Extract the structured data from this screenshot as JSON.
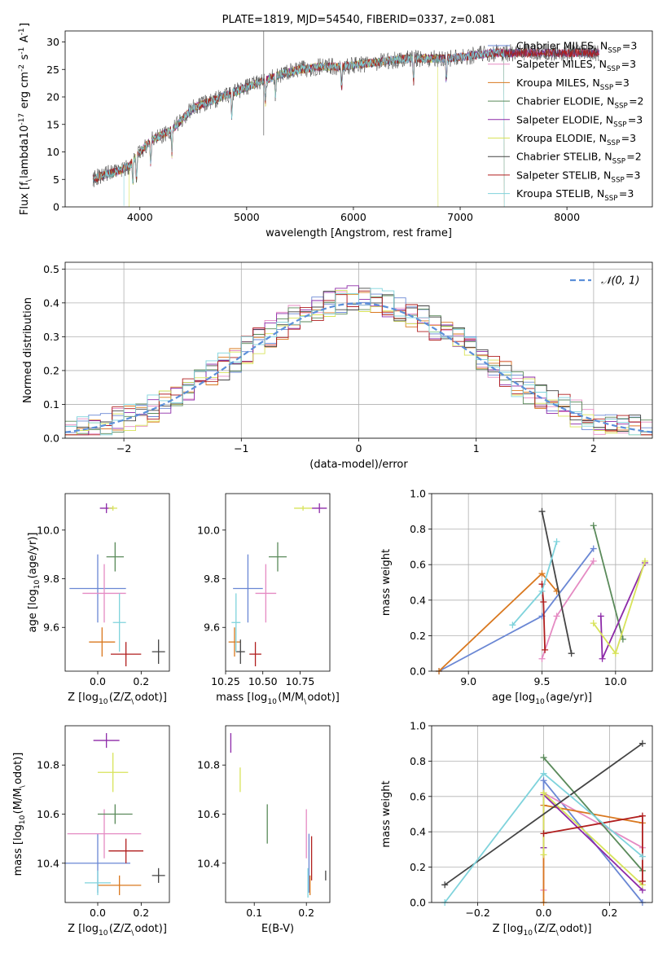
{
  "chart_data": [
    {
      "type": "line",
      "title": "PLATE=1819, MJD=54540, FIBERID=0337, z=0.081",
      "xlabel": "wavelength [Angstrom, rest frame]",
      "ylabel": "Flux [f$_\\lambda$10$^{-17}$ erg cm$^{-2}$ s$^{-1}$ A$^{-1}$]",
      "xlim": [
        3300,
        8800
      ],
      "ylim": [
        0,
        32
      ],
      "x_ticks": [
        4000,
        5000,
        6000,
        7000,
        8000
      ],
      "y_ticks": [
        0,
        5,
        10,
        15,
        20,
        25,
        30
      ],
      "legend_position": "right",
      "spectrum_profile": {
        "wavelength": [
          3550,
          3700,
          3800,
          3900,
          4000,
          4100,
          4200,
          4300,
          4400,
          4500,
          4700,
          4900,
          5100,
          5300,
          5500,
          5700,
          5900,
          6100,
          6300,
          6500,
          6700,
          6900,
          7100,
          7300,
          7500,
          7700,
          7900,
          8100,
          8300
        ],
        "flux": [
          5,
          6,
          6.5,
          7.5,
          10,
          12,
          13,
          14,
          16,
          18,
          19.5,
          21,
          22.5,
          24,
          25,
          25.5,
          25.5,
          26,
          26.5,
          27,
          27,
          27,
          27.5,
          28,
          28,
          28,
          28,
          28,
          28
        ]
      },
      "series": [
        {
          "name": "Chabrier MILES, N$_{SSP}$=3",
          "color": "#6a87d4"
        },
        {
          "name": "Salpeter MILES, N$_{SSP}$=3",
          "color": "#e58bc3"
        },
        {
          "name": "Kroupa MILES, N$_{SSP}$=3",
          "color": "#d9781f"
        },
        {
          "name": "Chabrier ELODIE, N$_{SSP}$=2",
          "color": "#5a8a5a"
        },
        {
          "name": "Salpeter ELODIE, N$_{SSP}$=3",
          "color": "#8d2aa8"
        },
        {
          "name": "Kroupa ELODIE, N$_{SSP}$=3",
          "color": "#d8e35a"
        },
        {
          "name": "Chabrier STELIB, N$_{SSP}$=2",
          "color": "#444444"
        },
        {
          "name": "Salpeter STELIB, N$_{SSP}$=3",
          "color": "#b01e1e"
        },
        {
          "name": "Kroupa STELIB, N$_{SSP}$=3",
          "color": "#7fd3dc"
        }
      ]
    },
    {
      "type": "line",
      "xlabel": "(data-model)/error",
      "ylabel": "Normed distribution",
      "xlim": [
        -2.5,
        2.5
      ],
      "ylim": [
        0,
        0.52
      ],
      "x_ticks": [
        -2,
        -1,
        0,
        1,
        2
      ],
      "y_ticks": [
        0.0,
        0.1,
        0.2,
        0.3,
        0.4,
        0.5
      ],
      "grid": true,
      "legend": "$\\mathcal{N}(0,1)$",
      "legend_position": "top-right",
      "normal_curve": {
        "mean": 0,
        "sigma": 1,
        "color": "#5b8fd9"
      },
      "histogram_bin_width": 0.1,
      "histogram_peak": 0.42
    },
    {
      "type": "scatter",
      "xlabel": "Z [log$_{10}$(Z/Z$_\\odot$)]",
      "ylabel": "age  [log$_{10}$(age/yr)]",
      "xlim": [
        -0.15,
        0.33
      ],
      "ylim": [
        9.42,
        10.15
      ],
      "x_ticks": [
        0.0,
        0.2
      ],
      "y_ticks": [
        9.6,
        9.8,
        10.0
      ],
      "points": [
        {
          "series": "Chabrier MILES",
          "x": 0.0,
          "y": 9.76,
          "xerr": 0.13,
          "yerr": 0.14
        },
        {
          "series": "Salpeter MILES",
          "x": 0.03,
          "y": 9.74,
          "xerr": 0.1,
          "yerr": 0.12
        },
        {
          "series": "Kroupa MILES",
          "x": 0.02,
          "y": 9.54,
          "xerr": 0.06,
          "yerr": 0.06
        },
        {
          "series": "Chabrier ELODIE",
          "x": 0.08,
          "y": 9.89,
          "xerr": 0.04,
          "yerr": 0.06
        },
        {
          "series": "Salpeter ELODIE",
          "x": 0.04,
          "y": 10.09,
          "xerr": 0.03,
          "yerr": 0.02
        },
        {
          "series": "Kroupa ELODIE",
          "x": 0.07,
          "y": 10.09,
          "xerr": 0.02,
          "yerr": 0.01
        },
        {
          "series": "Chabrier STELIB",
          "x": 0.28,
          "y": 9.5,
          "xerr": 0.03,
          "yerr": 0.05
        },
        {
          "series": "Salpeter STELIB",
          "x": 0.13,
          "y": 9.49,
          "xerr": 0.07,
          "yerr": 0.05
        },
        {
          "series": "Kroupa STELIB",
          "x": 0.1,
          "y": 9.62,
          "xerr": 0.03,
          "yerr": 0.12
        }
      ]
    },
    {
      "type": "scatter",
      "xlabel": "mass [log$_{10}$(M/M$_\\odot$)]",
      "xlim": [
        10.25,
        10.95
      ],
      "ylim": [
        9.42,
        10.15
      ],
      "x_ticks": [
        10.25,
        10.5,
        10.75
      ],
      "y_ticks": [
        9.6,
        9.8,
        10.0
      ],
      "points": [
        {
          "series": "Chabrier MILES",
          "x": 10.4,
          "y": 9.76,
          "xerr": 0.1,
          "yerr": 0.14
        },
        {
          "series": "Salpeter MILES",
          "x": 10.52,
          "y": 9.74,
          "xerr": 0.07,
          "yerr": 0.12
        },
        {
          "series": "Kroupa MILES",
          "x": 10.31,
          "y": 9.54,
          "xerr": 0.04,
          "yerr": 0.06
        },
        {
          "series": "Chabrier ELODIE",
          "x": 10.6,
          "y": 9.89,
          "xerr": 0.06,
          "yerr": 0.06
        },
        {
          "series": "Salpeter ELODIE",
          "x": 10.88,
          "y": 10.09,
          "xerr": 0.05,
          "yerr": 0.02
        },
        {
          "series": "Kroupa ELODIE",
          "x": 10.77,
          "y": 10.09,
          "xerr": 0.06,
          "yerr": 0.01
        },
        {
          "series": "Chabrier STELIB",
          "x": 10.35,
          "y": 9.5,
          "xerr": 0.03,
          "yerr": 0.05
        },
        {
          "series": "Salpeter STELIB",
          "x": 10.45,
          "y": 9.49,
          "xerr": 0.04,
          "yerr": 0.05
        },
        {
          "series": "Kroupa STELIB",
          "x": 10.32,
          "y": 9.62,
          "xerr": 0.03,
          "yerr": 0.12
        }
      ]
    },
    {
      "type": "line",
      "xlabel": "age  [log$_{10}$(age/yr)]",
      "ylabel": "mass weight",
      "xlim": [
        8.75,
        10.25
      ],
      "ylim": [
        0,
        1
      ],
      "x_ticks": [
        9.0,
        9.5,
        10.0
      ],
      "y_ticks": [
        0.0,
        0.2,
        0.4,
        0.6,
        0.8,
        1.0
      ],
      "grid": true,
      "series": [
        {
          "name": "Chabrier MILES",
          "x": [
            8.8,
            9.5,
            9.85
          ],
          "y": [
            0.0,
            0.31,
            0.69
          ]
        },
        {
          "name": "Salpeter MILES",
          "x": [
            9.5,
            9.6,
            9.85
          ],
          "y": [
            0.07,
            0.31,
            0.62
          ]
        },
        {
          "name": "Kroupa MILES",
          "x": [
            8.8,
            9.5,
            9.6
          ],
          "y": [
            0.0,
            0.55,
            0.45
          ]
        },
        {
          "name": "Chabrier ELODIE",
          "x": [
            9.85,
            10.05
          ],
          "y": [
            0.82,
            0.18
          ]
        },
        {
          "name": "Salpeter ELODIE",
          "x": [
            9.9,
            9.91,
            10.2
          ],
          "y": [
            0.31,
            0.07,
            0.61
          ]
        },
        {
          "name": "Kroupa ELODIE",
          "x": [
            9.85,
            10.0,
            10.2
          ],
          "y": [
            0.27,
            0.1,
            0.62
          ]
        },
        {
          "name": "Chabrier STELIB",
          "x": [
            9.5,
            9.7
          ],
          "y": [
            0.9,
            0.1
          ]
        },
        {
          "name": "Salpeter STELIB",
          "x": [
            9.5,
            9.51,
            9.52
          ],
          "y": [
            0.49,
            0.39,
            0.12
          ]
        },
        {
          "name": "Kroupa STELIB",
          "x": [
            9.3,
            9.5,
            9.6
          ],
          "y": [
            0.26,
            0.45,
            0.73
          ]
        }
      ]
    },
    {
      "type": "scatter",
      "xlabel": "Z [log$_{10}$(Z/Z$_\\odot$)]",
      "ylabel": "mass [log$_{10}$(M/M$_\\odot$)]",
      "xlim": [
        -0.15,
        0.33
      ],
      "ylim": [
        10.24,
        10.96
      ],
      "x_ticks": [
        0.0,
        0.2
      ],
      "y_ticks": [
        10.4,
        10.6,
        10.8
      ],
      "points": [
        {
          "series": "Chabrier MILES",
          "x": 0.0,
          "y": 10.4,
          "xerr": 0.15,
          "yerr": 0.12
        },
        {
          "series": "Salpeter MILES",
          "x": 0.03,
          "y": 10.52,
          "xerr": 0.17,
          "yerr": 0.1
        },
        {
          "series": "Kroupa MILES",
          "x": 0.1,
          "y": 10.31,
          "xerr": 0.1,
          "yerr": 0.04
        },
        {
          "series": "Chabrier ELODIE",
          "x": 0.08,
          "y": 10.6,
          "xerr": 0.08,
          "yerr": 0.04
        },
        {
          "series": "Salpeter ELODIE",
          "x": 0.04,
          "y": 10.9,
          "xerr": 0.06,
          "yerr": 0.03
        },
        {
          "series": "Kroupa ELODIE",
          "x": 0.07,
          "y": 10.77,
          "xerr": 0.07,
          "yerr": 0.08
        },
        {
          "series": "Chabrier STELIB",
          "x": 0.28,
          "y": 10.35,
          "xerr": 0.03,
          "yerr": 0.03
        },
        {
          "series": "Salpeter STELIB",
          "x": 0.13,
          "y": 10.45,
          "xerr": 0.08,
          "yerr": 0.05
        },
        {
          "series": "Kroupa STELIB",
          "x": 0.0,
          "y": 10.32,
          "xerr": 0.06,
          "yerr": 0.05
        }
      ]
    },
    {
      "type": "scatter",
      "xlabel": "E(B-V)",
      "xlim": [
        0.045,
        0.245
      ],
      "ylim": [
        10.24,
        10.96
      ],
      "x_ticks": [
        0.1,
        0.2
      ],
      "y_ticks": [
        10.4,
        10.6,
        10.8
      ],
      "points": [
        {
          "series": "Chabrier MILES",
          "x": 0.205,
          "y": 10.4,
          "yerr": 0.12
        },
        {
          "series": "Salpeter MILES",
          "x": 0.2,
          "y": 10.52,
          "yerr": 0.1
        },
        {
          "series": "Kroupa MILES",
          "x": 0.207,
          "y": 10.31,
          "yerr": 0.04
        },
        {
          "series": "Chabrier ELODIE",
          "x": 0.125,
          "y": 10.56,
          "yerr": 0.08
        },
        {
          "series": "Salpeter ELODIE",
          "x": 0.055,
          "y": 10.89,
          "yerr": 0.04
        },
        {
          "series": "Kroupa ELODIE",
          "x": 0.073,
          "y": 10.74,
          "yerr": 0.05
        },
        {
          "series": "Chabrier STELIB",
          "x": 0.237,
          "y": 10.35,
          "yerr": 0.02
        },
        {
          "series": "Salpeter STELIB",
          "x": 0.21,
          "y": 10.42,
          "yerr": 0.09
        },
        {
          "series": "Kroupa STELIB",
          "x": 0.203,
          "y": 10.32,
          "yerr": 0.06
        }
      ]
    },
    {
      "type": "line",
      "xlabel": "Z [log$_{10}$(Z/Z$_\\odot$)]",
      "ylabel": "mass weight",
      "xlim": [
        -0.34,
        0.33
      ],
      "ylim": [
        0,
        1
      ],
      "x_ticks": [
        -0.2,
        0.0,
        0.2
      ],
      "y_ticks": [
        0.0,
        0.2,
        0.4,
        0.6,
        0.8,
        1.0
      ],
      "grid": true,
      "series": [
        {
          "name": "Chabrier MILES",
          "x": [
            0.0,
            0.0,
            0.3
          ],
          "y": [
            0.31,
            0.69,
            0.0
          ]
        },
        {
          "name": "Salpeter MILES",
          "x": [
            0.0,
            0.0,
            0.3
          ],
          "y": [
            0.07,
            0.62,
            0.31
          ]
        },
        {
          "name": "Kroupa MILES",
          "x": [
            0.0,
            0.0,
            0.3
          ],
          "y": [
            0.0,
            0.55,
            0.45
          ]
        },
        {
          "name": "Chabrier ELODIE",
          "x": [
            0.0,
            0.3
          ],
          "y": [
            0.82,
            0.18
          ]
        },
        {
          "name": "Salpeter ELODIE",
          "x": [
            0.0,
            0.0,
            0.3
          ],
          "y": [
            0.31,
            0.61,
            0.07
          ]
        },
        {
          "name": "Kroupa ELODIE",
          "x": [
            0.0,
            0.0,
            0.3
          ],
          "y": [
            0.27,
            0.62,
            0.1
          ]
        },
        {
          "name": "Chabrier STELIB",
          "x": [
            -0.3,
            0.3
          ],
          "y": [
            0.1,
            0.9
          ]
        },
        {
          "name": "Salpeter STELIB",
          "x": [
            0.0,
            0.3,
            0.3
          ],
          "y": [
            0.39,
            0.49,
            0.12
          ]
        },
        {
          "name": "Kroupa STELIB",
          "x": [
            -0.3,
            0.0,
            0.3
          ],
          "y": [
            0.0,
            0.73,
            0.26
          ]
        }
      ]
    }
  ]
}
